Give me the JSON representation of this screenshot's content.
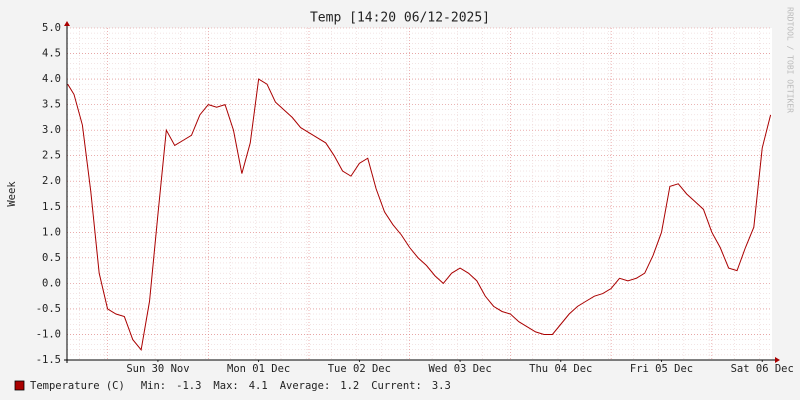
{
  "chart_data": {
    "type": "line",
    "title": "Temp [14:20 06/12-2025]",
    "y_label": "Week",
    "watermark": "RRDTOOL / TOBI OETIKER",
    "x": [
      14.5,
      16,
      18,
      20,
      22,
      24,
      26,
      28,
      30,
      32,
      34,
      36,
      38,
      40,
      42,
      44,
      46,
      48,
      50,
      52,
      54,
      56,
      58,
      60,
      62,
      64,
      66,
      68,
      70,
      72,
      74,
      76,
      78,
      80,
      82,
      84,
      86,
      88,
      90,
      92,
      94,
      96,
      98,
      100,
      102,
      104,
      106,
      108,
      110,
      112,
      114,
      116,
      118,
      120,
      122,
      124,
      126,
      128,
      130,
      132,
      134,
      136,
      138,
      140,
      142,
      144,
      146,
      148,
      150,
      152,
      154,
      156,
      158,
      160,
      162,
      164,
      166,
      168,
      170,
      172,
      174,
      176,
      178,
      180,
      182
    ],
    "series": [
      {
        "name": "Temperature (C)",
        "color": "#aa0000",
        "values": [
          3.9,
          3.7,
          3.1,
          1.8,
          0.2,
          -0.5,
          -0.6,
          -0.65,
          -1.1,
          -1.3,
          -0.35,
          1.35,
          3.0,
          2.7,
          2.8,
          2.9,
          3.3,
          3.5,
          3.45,
          3.5,
          3.0,
          2.15,
          2.75,
          4.0,
          3.9,
          3.55,
          3.4,
          3.25,
          3.05,
          2.95,
          2.85,
          2.75,
          2.5,
          2.2,
          2.1,
          2.35,
          2.45,
          1.85,
          1.4,
          1.15,
          0.95,
          0.7,
          0.5,
          0.35,
          0.15,
          0.0,
          0.2,
          0.3,
          0.2,
          0.05,
          -0.25,
          -0.45,
          -0.55,
          -0.6,
          -0.75,
          -0.85,
          -0.95,
          -1.0,
          -1.0,
          -0.8,
          -0.6,
          -0.45,
          -0.35,
          -0.25,
          -0.2,
          -0.1,
          0.1,
          0.05,
          0.1,
          0.2,
          0.55,
          1.0,
          1.9,
          1.95,
          1.75,
          1.6,
          1.45,
          1.0,
          0.7,
          0.3,
          0.25,
          0.7,
          1.1,
          2.65,
          3.3
        ]
      }
    ],
    "stats": [
      {
        "label": "Min:",
        "value": -1.3
      },
      {
        "label": "Max:",
        "value": 4.1
      },
      {
        "label": "Average:",
        "value": 1.2
      },
      {
        "label": "Current:",
        "value": 3.3
      }
    ],
    "xlim": [
      14.333,
      182.333
    ],
    "xticks": [
      {
        "value": 36,
        "label": "Sun 30 Nov"
      },
      {
        "value": 60,
        "label": "Mon 01 Dec"
      },
      {
        "value": 84,
        "label": "Tue 02 Dec"
      },
      {
        "value": 108,
        "label": "Wed 03 Dec"
      },
      {
        "value": 132,
        "label": "Thu 04 Dec"
      },
      {
        "value": 156,
        "label": "Fri 05 Dec"
      },
      {
        "value": 180,
        "label": "Sat 06 Dec"
      }
    ],
    "xgrid": [
      24,
      48,
      72,
      96,
      120,
      144,
      168
    ],
    "ylim": [
      -1.5,
      5.0
    ],
    "yticks": [
      {
        "value": -1.5,
        "label": "-1.5"
      },
      {
        "value": -1.0,
        "label": "-1.0"
      },
      {
        "value": -0.5,
        "label": "-0.5"
      },
      {
        "value": 0.0,
        "label": "0.0"
      },
      {
        "value": 0.5,
        "label": "0.5"
      },
      {
        "value": 1.0,
        "label": "1.0"
      },
      {
        "value": 1.5,
        "label": "1.5"
      },
      {
        "value": 2.0,
        "label": "2.0"
      },
      {
        "value": 2.5,
        "label": "2.5"
      },
      {
        "value": 3.0,
        "label": "3.0"
      },
      {
        "value": 3.5,
        "label": "3.5"
      },
      {
        "value": 4.0,
        "label": "4.0"
      },
      {
        "value": 4.5,
        "label": "4.5"
      },
      {
        "value": 5.0,
        "label": "5.0"
      }
    ],
    "grid": true
  }
}
